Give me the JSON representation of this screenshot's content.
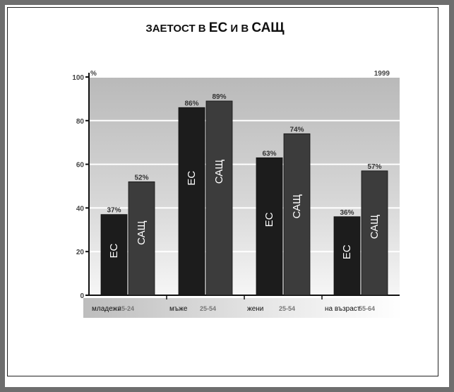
{
  "title": {
    "part1": "ЗАЕТОСТ В ",
    "part2": "ЕС",
    "part3": " И В ",
    "part4": "САЩ"
  },
  "chart_data": {
    "type": "bar",
    "title": "ЗАЕТОСТ В ЕС И В САЩ",
    "ylabel": "%",
    "year_label": "1999",
    "ylim": [
      0,
      100
    ],
    "yticks": [
      0,
      20,
      40,
      60,
      80,
      100
    ],
    "grid": true,
    "categories": [
      {
        "label": "младежи",
        "age": "15-24"
      },
      {
        "label": "мъже",
        "age": "25-54"
      },
      {
        "label": "жени",
        "age": "25-54"
      },
      {
        "label": "на възраст",
        "age": "55-64"
      }
    ],
    "series": [
      {
        "name": "ЕС",
        "values": [
          37,
          86,
          63,
          36
        ],
        "value_labels": [
          "37%",
          "86%",
          "63%",
          "36%"
        ],
        "color": "#1c1c1c"
      },
      {
        "name": "САЩ",
        "values": [
          52,
          89,
          74,
          57
        ],
        "value_labels": [
          "52%",
          "89%",
          "74%",
          "57%"
        ],
        "color": "#3c3c3c"
      }
    ]
  }
}
